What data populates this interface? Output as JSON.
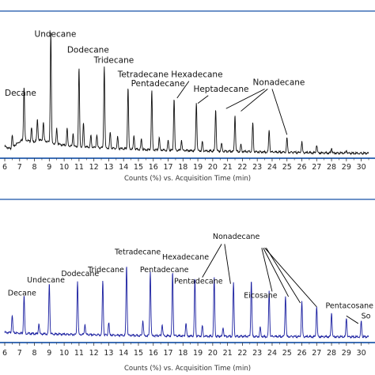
{
  "colors": {
    "frame": "#3d6fb6",
    "top_trace": "#111111",
    "bottom_trace": "#1a1fa0",
    "pointer": "#000000"
  },
  "chart_data": [
    {
      "type": "line",
      "title": "",
      "xlabel": "Counts (%) vs. Acquisition Time (min)",
      "ylabel": "",
      "xlim": [
        6,
        30.5
      ],
      "ylim": [
        0,
        100
      ],
      "grid": false,
      "baseline": [
        [
          6.0,
          6
        ],
        [
          6.4,
          4
        ],
        [
          6.8,
          8
        ],
        [
          7.3,
          12
        ],
        [
          7.8,
          9
        ],
        [
          8.3,
          11
        ],
        [
          8.8,
          10
        ],
        [
          9.4,
          8
        ],
        [
          10.0,
          7
        ],
        [
          10.6,
          6
        ],
        [
          11.5,
          5.5
        ],
        [
          12.5,
          5
        ],
        [
          13.5,
          4.5
        ],
        [
          14.5,
          4
        ],
        [
          15.5,
          3.6
        ],
        [
          16.5,
          3.3
        ],
        [
          17.5,
          3
        ],
        [
          18.5,
          2.8
        ],
        [
          19.5,
          2.6
        ],
        [
          20.5,
          2.4
        ],
        [
          21.5,
          2.2
        ],
        [
          22.5,
          2
        ],
        [
          23.5,
          1.8
        ],
        [
          24.5,
          1.6
        ],
        [
          25.5,
          1.4
        ],
        [
          26.5,
          1.2
        ],
        [
          27.5,
          1
        ],
        [
          28.5,
          0.9
        ],
        [
          29.5,
          0.8
        ],
        [
          30.5,
          0.7
        ]
      ],
      "peaks": [
        {
          "x": 7.3,
          "y": 40
        },
        {
          "x": 9.1,
          "y": 85
        },
        {
          "x": 11.0,
          "y": 60
        },
        {
          "x": 12.7,
          "y": 63
        },
        {
          "x": 14.3,
          "y": 47
        },
        {
          "x": 15.9,
          "y": 45
        },
        {
          "x": 17.4,
          "y": 40
        },
        {
          "x": 18.9,
          "y": 37
        },
        {
          "x": 20.2,
          "y": 32
        },
        {
          "x": 21.5,
          "y": 28
        },
        {
          "x": 22.7,
          "y": 22
        },
        {
          "x": 23.8,
          "y": 17
        },
        {
          "x": 25.0,
          "y": 11
        },
        {
          "x": 26.0,
          "y": 8
        },
        {
          "x": 27.0,
          "y": 6
        },
        {
          "x": 28.0,
          "y": 4
        },
        {
          "x": 29.0,
          "y": 2
        }
      ],
      "minor_peaks": [
        {
          "x": 6.5,
          "y": 10
        },
        {
          "x": 7.8,
          "y": 12
        },
        {
          "x": 8.2,
          "y": 16
        },
        {
          "x": 8.6,
          "y": 14
        },
        {
          "x": 9.5,
          "y": 12
        },
        {
          "x": 10.2,
          "y": 13
        },
        {
          "x": 10.6,
          "y": 10
        },
        {
          "x": 11.3,
          "y": 18
        },
        {
          "x": 11.8,
          "y": 9
        },
        {
          "x": 12.2,
          "y": 10
        },
        {
          "x": 13.1,
          "y": 12
        },
        {
          "x": 13.6,
          "y": 9
        },
        {
          "x": 14.7,
          "y": 10
        },
        {
          "x": 15.2,
          "y": 8
        },
        {
          "x": 16.4,
          "y": 9
        },
        {
          "x": 17.0,
          "y": 7
        },
        {
          "x": 17.9,
          "y": 8
        },
        {
          "x": 19.3,
          "y": 7
        },
        {
          "x": 20.6,
          "y": 6
        },
        {
          "x": 21.9,
          "y": 5
        }
      ],
      "annotations": [
        {
          "text": "Decane",
          "x": 6.0,
          "y": 45
        },
        {
          "text": "Undecane",
          "x": 8.0,
          "y": 90
        },
        {
          "text": "Dodecane",
          "x": 10.2,
          "y": 78
        },
        {
          "text": "Tridecane",
          "x": 12.0,
          "y": 70
        },
        {
          "text": "Tetradecane",
          "x": 13.6,
          "y": 59
        },
        {
          "text": "Hexadecane",
          "x": 17.2,
          "y": 59
        },
        {
          "text": "Pentadecane",
          "x": 14.5,
          "y": 52
        },
        {
          "text": "Heptadecane",
          "x": 18.7,
          "y": 48
        },
        {
          "text": "Nonadecane",
          "x": 22.7,
          "y": 53
        }
      ],
      "pointer_lines": [
        {
          "from": [
            18.4,
            56
          ],
          "to": [
            17.6,
            43
          ]
        },
        {
          "from": [
            19.7,
            45
          ],
          "to": [
            19.0,
            39
          ]
        },
        {
          "from": [
            23.5,
            50
          ],
          "to": [
            20.9,
            35
          ]
        },
        {
          "from": [
            23.7,
            50
          ],
          "to": [
            21.9,
            33
          ]
        },
        {
          "from": [
            24.0,
            50
          ],
          "to": [
            25.0,
            15
          ]
        }
      ],
      "x_ticks": [
        "6",
        "7",
        "8",
        "9",
        "10",
        "11",
        "12",
        "13",
        "14",
        "15",
        "16",
        "17",
        "18",
        "19",
        "20",
        "21",
        "22",
        "23",
        "24",
        "25",
        "26",
        "27",
        "28",
        "29",
        "30"
      ]
    },
    {
      "type": "line",
      "title": "",
      "xlabel": "Counts (%) vs. Acquisition Time (min)",
      "ylabel": "",
      "xlim": [
        6,
        30.5
      ],
      "ylim": [
        0,
        100
      ],
      "grid": false,
      "baseline": [
        [
          6.0,
          6
        ],
        [
          7.0,
          5.5
        ],
        [
          8.0,
          5
        ],
        [
          9.0,
          4.8
        ],
        [
          10.0,
          4.6
        ],
        [
          11.0,
          4.4
        ],
        [
          12.0,
          4.2
        ],
        [
          13.0,
          4
        ],
        [
          14.0,
          3.8
        ],
        [
          15.0,
          3.6
        ],
        [
          16.0,
          3.5
        ],
        [
          17.0,
          3.4
        ],
        [
          18.0,
          3.3
        ],
        [
          19.0,
          3.2
        ],
        [
          20.0,
          3.1
        ],
        [
          21.0,
          3
        ],
        [
          22.0,
          3
        ],
        [
          23.0,
          2.9
        ],
        [
          24.0,
          2.9
        ],
        [
          25.0,
          2.8
        ],
        [
          26.0,
          2.8
        ],
        [
          27.0,
          2.7
        ],
        [
          28.0,
          2.7
        ],
        [
          29.0,
          2.6
        ],
        [
          30.0,
          2.6
        ],
        [
          30.5,
          2.6
        ]
      ],
      "peaks": [
        {
          "x": 7.3,
          "y": 30
        },
        {
          "x": 9.0,
          "y": 40
        },
        {
          "x": 10.9,
          "y": 42
        },
        {
          "x": 12.6,
          "y": 42
        },
        {
          "x": 14.2,
          "y": 55
        },
        {
          "x": 15.8,
          "y": 50
        },
        {
          "x": 17.3,
          "y": 50
        },
        {
          "x": 18.8,
          "y": 45
        },
        {
          "x": 20.1,
          "y": 46
        },
        {
          "x": 21.4,
          "y": 42
        },
        {
          "x": 22.6,
          "y": 44
        },
        {
          "x": 23.8,
          "y": 36
        },
        {
          "x": 24.9,
          "y": 32
        },
        {
          "x": 26.0,
          "y": 27
        },
        {
          "x": 27.0,
          "y": 24
        },
        {
          "x": 28.0,
          "y": 19
        },
        {
          "x": 29.0,
          "y": 15
        },
        {
          "x": 30.0,
          "y": 12
        }
      ],
      "minor_peaks": [
        {
          "x": 6.5,
          "y": 14
        },
        {
          "x": 8.3,
          "y": 8
        },
        {
          "x": 11.4,
          "y": 8
        },
        {
          "x": 13.0,
          "y": 10
        },
        {
          "x": 15.3,
          "y": 12
        },
        {
          "x": 16.6,
          "y": 9
        },
        {
          "x": 18.2,
          "y": 10
        },
        {
          "x": 19.3,
          "y": 8
        },
        {
          "x": 20.7,
          "y": 7
        },
        {
          "x": 23.2,
          "y": 7
        }
      ],
      "annotations": [
        {
          "text": "Decane",
          "x": 6.2,
          "y": 35
        },
        {
          "text": "Undecane",
          "x": 7.5,
          "y": 45
        },
        {
          "text": "Dodecane",
          "x": 9.8,
          "y": 50
        },
        {
          "text": "Tridecane",
          "x": 11.6,
          "y": 53
        },
        {
          "text": "Tetradecane",
          "x": 13.4,
          "y": 67
        },
        {
          "text": "Pentadecane",
          "x": 15.1,
          "y": 53
        },
        {
          "text": "Hexadecane",
          "x": 16.6,
          "y": 63
        },
        {
          "text": "Pentadecane",
          "x": 17.4,
          "y": 44
        },
        {
          "text": "Nonadecane",
          "x": 20.0,
          "y": 79
        },
        {
          "text": "Eicosane",
          "x": 22.1,
          "y": 33
        },
        {
          "text": "Pentacosane",
          "x": 27.6,
          "y": 25
        },
        {
          "text": "So",
          "x": 30.0,
          "y": 17
        }
      ],
      "pointer_lines": [
        {
          "from": [
            20.6,
            75
          ],
          "to": [
            19.3,
            49
          ]
        },
        {
          "from": [
            20.8,
            75
          ],
          "to": [
            21.2,
            44
          ]
        },
        {
          "from": [
            23.3,
            72
          ],
          "to": [
            24.0,
            38
          ]
        },
        {
          "from": [
            23.4,
            72
          ],
          "to": [
            25.1,
            34
          ]
        },
        {
          "from": [
            23.5,
            72
          ],
          "to": [
            27.0,
            26
          ]
        },
        {
          "from": [
            23.6,
            72
          ],
          "to": [
            25.9,
            29
          ]
        },
        {
          "from": [
            29.0,
            19
          ],
          "to": [
            29.8,
            13
          ]
        }
      ],
      "x_ticks": [
        "6",
        "7",
        "8",
        "9",
        "10",
        "11",
        "12",
        "13",
        "14",
        "15",
        "16",
        "17",
        "18",
        "19",
        "20",
        "21",
        "22",
        "23",
        "24",
        "25",
        "26",
        "27",
        "28",
        "29",
        "30"
      ]
    }
  ]
}
